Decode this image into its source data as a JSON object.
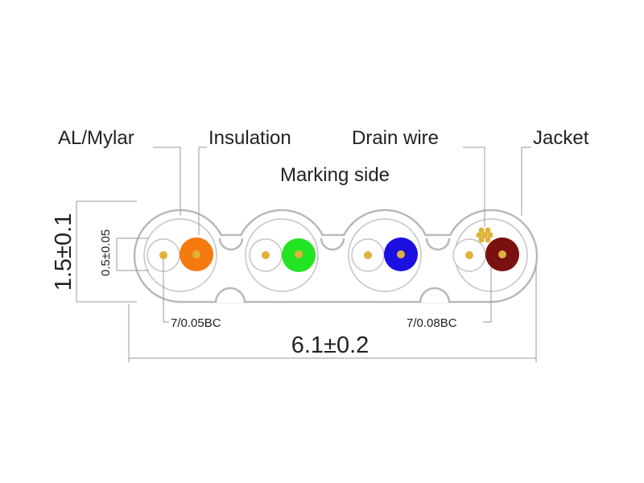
{
  "labels": {
    "al_mylar": "AL/Mylar",
    "insulation": "Insulation",
    "drain_wire": "Drain wire",
    "jacket": "Jacket",
    "marking_side": "Marking side"
  },
  "dimensions": {
    "height": "1.5±0.1",
    "pair_gap": "0.5±0.05",
    "conductor_left": "7/0.05BC",
    "conductor_right": "7/0.08BC",
    "width": "6.1±0.2"
  }
}
